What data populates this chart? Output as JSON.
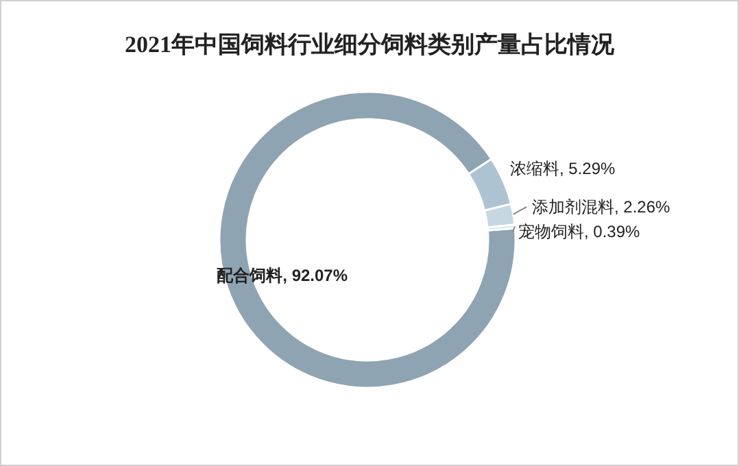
{
  "chart_data": {
    "type": "donut",
    "title": "2021年中国饲料行业细分饲料类别产量占比情况",
    "categories": [
      "配合饲料",
      "浓缩料",
      "添加剂混料",
      "宠物饲料"
    ],
    "values": [
      92.07,
      5.29,
      2.26,
      0.39
    ],
    "colors": [
      "#8fa4b2",
      "#aec3d1",
      "#c6d7e2",
      "#dbe7ee"
    ],
    "value_labels": [
      "92.07%",
      "5.29%",
      "2.26%",
      "0.39%"
    ]
  }
}
